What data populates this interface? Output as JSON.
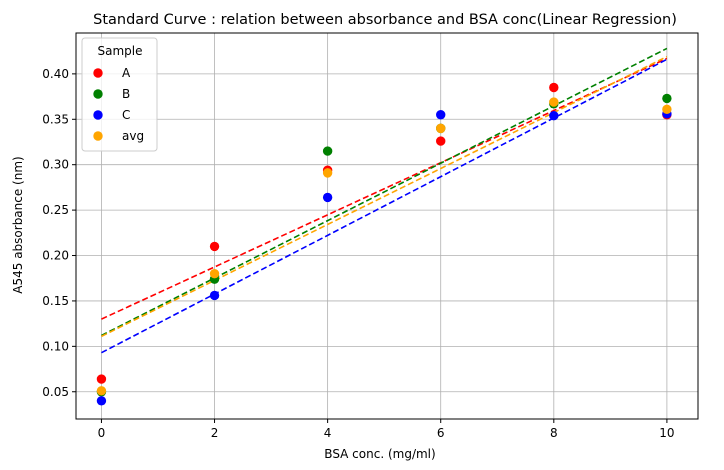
{
  "chart_data": {
    "type": "scatter",
    "title": "Standard Curve : relation between absorbance and BSA conc(Linear Regression)",
    "xlabel": "BSA conc. (mg/ml)",
    "ylabel": "A545 absorbance (nm)",
    "xlim": [
      -0.45,
      10.55
    ],
    "ylim": [
      0.02,
      0.445
    ],
    "xticks": [
      0,
      2,
      4,
      6,
      8,
      10
    ],
    "yticks": [
      0.05,
      0.1,
      0.15,
      0.2,
      0.25,
      0.3,
      0.35,
      0.4
    ],
    "grid": true,
    "legend": {
      "title": "Sample",
      "placement": "top-left"
    },
    "x": [
      0,
      2,
      4,
      6,
      8,
      10
    ],
    "series": [
      {
        "name": "A",
        "color": "#ff0000",
        "values": [
          0.064,
          0.21,
          0.294,
          0.326,
          0.385,
          0.355
        ],
        "fit": [
          0.13,
          0.0287
        ]
      },
      {
        "name": "B",
        "color": "#008000",
        "values": [
          0.05,
          0.174,
          0.315,
          0.34,
          0.367,
          0.373
        ],
        "fit": [
          0.112,
          0.0316
        ]
      },
      {
        "name": "C",
        "color": "#0000ff",
        "values": [
          0.04,
          0.156,
          0.264,
          0.355,
          0.354,
          0.356
        ],
        "fit": [
          0.093,
          0.0323
        ]
      },
      {
        "name": "avg",
        "color": "#ffa500",
        "values": [
          0.051,
          0.18,
          0.291,
          0.34,
          0.369,
          0.361
        ],
        "fit": [
          0.111,
          0.0308
        ]
      }
    ]
  }
}
